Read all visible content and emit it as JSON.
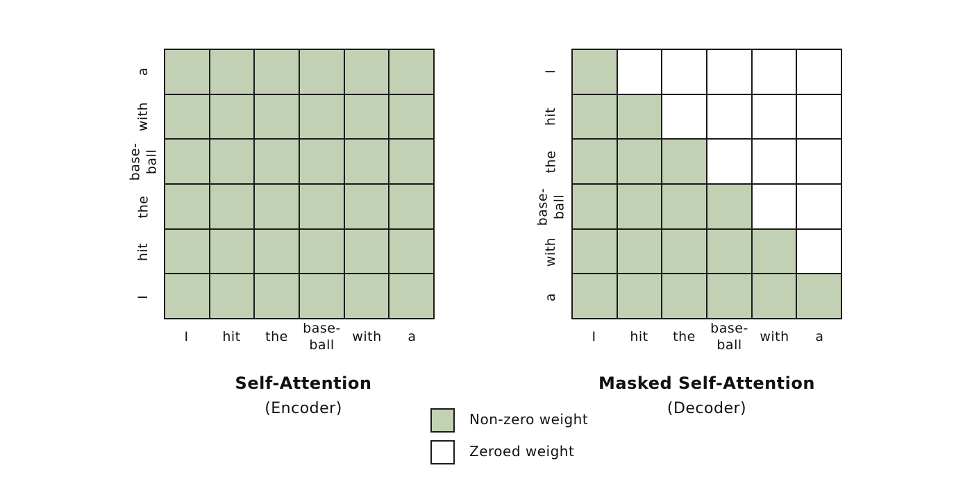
{
  "encoder": {
    "title": "Self-Attention",
    "subtitle": "(Encoder)",
    "x_labels": [
      "I",
      "hit",
      "the",
      "base-\nball",
      "with",
      "a"
    ],
    "y_labels_top_to_bottom": [
      "a",
      "with",
      "base-\nball",
      "the",
      "hit",
      "I"
    ],
    "mask": [
      [
        1,
        1,
        1,
        1,
        1,
        1
      ],
      [
        1,
        1,
        1,
        1,
        1,
        1
      ],
      [
        1,
        1,
        1,
        1,
        1,
        1
      ],
      [
        1,
        1,
        1,
        1,
        1,
        1
      ],
      [
        1,
        1,
        1,
        1,
        1,
        1
      ],
      [
        1,
        1,
        1,
        1,
        1,
        1
      ]
    ]
  },
  "decoder": {
    "title": "Masked Self-Attention",
    "subtitle": "(Decoder)",
    "x_labels": [
      "I",
      "hit",
      "the",
      "base-\nball",
      "with",
      "a"
    ],
    "y_labels_top_to_bottom": [
      "I",
      "hit",
      "the",
      "base-\nball",
      "with",
      "a"
    ],
    "mask": [
      [
        1,
        0,
        0,
        0,
        0,
        0
      ],
      [
        1,
        1,
        0,
        0,
        0,
        0
      ],
      [
        1,
        1,
        1,
        0,
        0,
        0
      ],
      [
        1,
        1,
        1,
        1,
        0,
        0
      ],
      [
        1,
        1,
        1,
        1,
        1,
        0
      ],
      [
        1,
        1,
        1,
        1,
        1,
        1
      ]
    ]
  },
  "legend": {
    "nonzero_label": "Non-zero weight",
    "zeroed_label": "Zeroed weight"
  },
  "colors": {
    "nonzero_fill": "#c2d1b4",
    "zeroed_fill": "#ffffff",
    "grid_line": "#1a1a1a"
  }
}
